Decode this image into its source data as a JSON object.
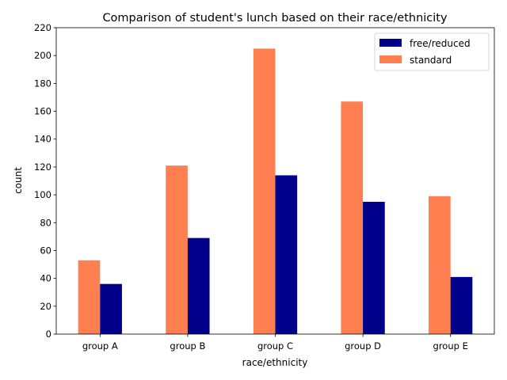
{
  "chart_data": {
    "type": "bar",
    "title": "Comparison of student's lunch based on their race/ethnicity",
    "xlabel": "race/ethnicity",
    "ylabel": "count",
    "categories": [
      "group A",
      "group B",
      "group C",
      "group D",
      "group E"
    ],
    "series": [
      {
        "name": "free/reduced",
        "values": [
          36,
          69,
          114,
          95,
          41
        ],
        "color": "#00008b"
      },
      {
        "name": "standard",
        "values": [
          53,
          121,
          205,
          167,
          99
        ],
        "color": "#ff7f50"
      }
    ],
    "bar_order": [
      "standard",
      "free/reduced"
    ],
    "ylim": [
      0,
      220
    ],
    "yticks": [
      0,
      20,
      40,
      60,
      80,
      100,
      120,
      140,
      160,
      180,
      200,
      220
    ],
    "grid": false,
    "legend_position": "top-right"
  }
}
